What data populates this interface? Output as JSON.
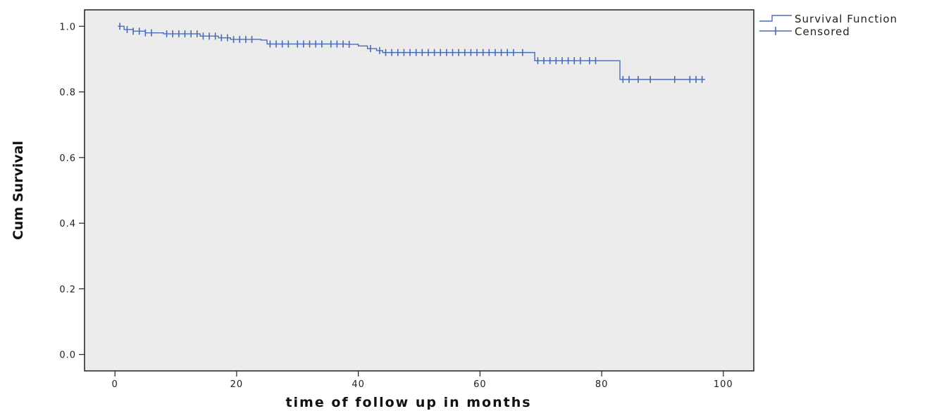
{
  "chart_data": {
    "type": "line",
    "xlabel": "time of follow up in months",
    "ylabel": "Cum Survival",
    "xlim": [
      -5,
      105
    ],
    "ylim": [
      -0.05,
      1.05
    ],
    "x_ticks": [
      "0",
      "20",
      "40",
      "60",
      "80",
      "100"
    ],
    "y_ticks": [
      "0.0",
      "0.2",
      "0.4",
      "0.6",
      "0.8",
      "1.0"
    ],
    "x_tick_values": [
      0,
      20,
      40,
      60,
      80,
      100
    ],
    "y_tick_values": [
      0.0,
      0.2,
      0.4,
      0.6,
      0.8,
      1.0
    ],
    "grid": false,
    "legend_position": "top-right outside",
    "background": "#ececec",
    "series": [
      {
        "name": "Survival Function",
        "color": "#4a6bb5",
        "steps": [
          [
            0.5,
            1.0
          ],
          [
            1.5,
            0.99
          ],
          [
            3,
            0.985
          ],
          [
            5,
            0.98
          ],
          [
            8,
            0.977
          ],
          [
            14,
            0.97
          ],
          [
            17,
            0.965
          ],
          [
            19,
            0.96
          ],
          [
            24,
            0.958
          ],
          [
            25,
            0.946
          ],
          [
            38,
            0.945
          ],
          [
            40,
            0.94
          ],
          [
            41.5,
            0.932
          ],
          [
            43,
            0.926
          ],
          [
            44,
            0.92
          ],
          [
            69,
            0.895
          ],
          [
            83,
            0.838
          ],
          [
            97,
            0.838
          ]
        ]
      },
      {
        "name": "Censored",
        "color": "#4a6bb5",
        "points": [
          [
            0.8,
            1.0
          ],
          [
            2,
            0.99
          ],
          [
            3,
            0.985
          ],
          [
            4,
            0.985
          ],
          [
            5,
            0.98
          ],
          [
            6,
            0.98
          ],
          [
            8.5,
            0.977
          ],
          [
            9.5,
            0.977
          ],
          [
            10.5,
            0.977
          ],
          [
            11.5,
            0.977
          ],
          [
            12.5,
            0.977
          ],
          [
            13.5,
            0.977
          ],
          [
            14.5,
            0.97
          ],
          [
            15.5,
            0.97
          ],
          [
            16.5,
            0.97
          ],
          [
            17.5,
            0.965
          ],
          [
            18.5,
            0.965
          ],
          [
            19.5,
            0.96
          ],
          [
            20.5,
            0.96
          ],
          [
            21.5,
            0.96
          ],
          [
            22.5,
            0.96
          ],
          [
            25.5,
            0.946
          ],
          [
            26.5,
            0.946
          ],
          [
            27.5,
            0.946
          ],
          [
            28.5,
            0.946
          ],
          [
            30,
            0.946
          ],
          [
            31,
            0.946
          ],
          [
            32,
            0.946
          ],
          [
            33,
            0.946
          ],
          [
            34,
            0.946
          ],
          [
            35.5,
            0.946
          ],
          [
            36.5,
            0.946
          ],
          [
            37.5,
            0.946
          ],
          [
            38.5,
            0.945
          ],
          [
            42,
            0.932
          ],
          [
            43.5,
            0.926
          ],
          [
            44.5,
            0.92
          ],
          [
            45.5,
            0.92
          ],
          [
            46.5,
            0.92
          ],
          [
            47.5,
            0.92
          ],
          [
            48.5,
            0.92
          ],
          [
            49.5,
            0.92
          ],
          [
            50.5,
            0.92
          ],
          [
            51.5,
            0.92
          ],
          [
            52.5,
            0.92
          ],
          [
            53.5,
            0.92
          ],
          [
            54.5,
            0.92
          ],
          [
            55.5,
            0.92
          ],
          [
            56.5,
            0.92
          ],
          [
            57.5,
            0.92
          ],
          [
            58.5,
            0.92
          ],
          [
            59.5,
            0.92
          ],
          [
            60.5,
            0.92
          ],
          [
            61.5,
            0.92
          ],
          [
            62.5,
            0.92
          ],
          [
            63.5,
            0.92
          ],
          [
            64.5,
            0.92
          ],
          [
            65.5,
            0.92
          ],
          [
            67,
            0.92
          ],
          [
            69.5,
            0.895
          ],
          [
            70.5,
            0.895
          ],
          [
            71.5,
            0.895
          ],
          [
            72.5,
            0.895
          ],
          [
            73.5,
            0.895
          ],
          [
            74.5,
            0.895
          ],
          [
            75.5,
            0.895
          ],
          [
            76.5,
            0.895
          ],
          [
            78,
            0.895
          ],
          [
            79,
            0.895
          ],
          [
            83.5,
            0.838
          ],
          [
            84.5,
            0.838
          ],
          [
            86,
            0.838
          ],
          [
            88,
            0.838
          ],
          [
            92,
            0.838
          ],
          [
            94.5,
            0.838
          ],
          [
            95.5,
            0.838
          ],
          [
            96.5,
            0.838
          ]
        ]
      }
    ]
  }
}
